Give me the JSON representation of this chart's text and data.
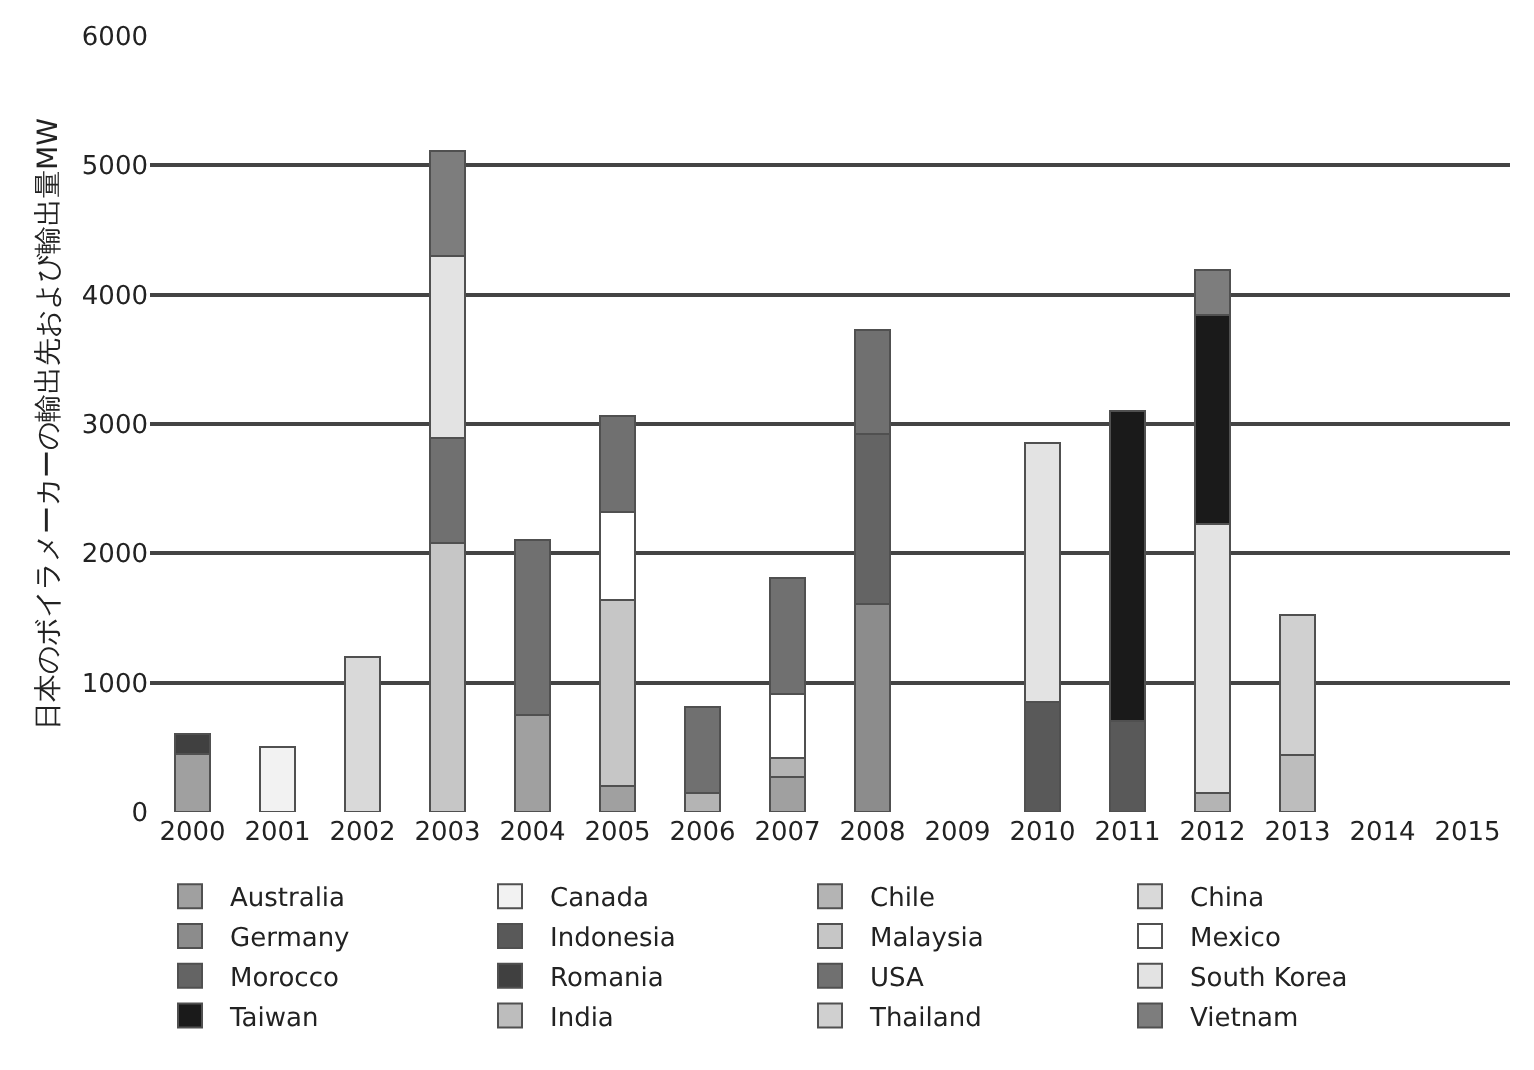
{
  "chart_data": {
    "type": "bar",
    "stacked": true,
    "ylabel": "日本のボイラメーカーの輸出先および輸出量MW",
    "categories": [
      "2000",
      "2001",
      "2002",
      "2003",
      "2004",
      "2005",
      "2006",
      "2007",
      "2008",
      "2009",
      "2010",
      "2011",
      "2012",
      "2013",
      "2014",
      "2015"
    ],
    "ylim": [
      0,
      6000
    ],
    "yticks": [
      0,
      1000,
      2000,
      3000,
      4000,
      5000,
      6000
    ],
    "grid": "y",
    "legend": "bottom",
    "series": [
      {
        "name": "Australia",
        "color": "#a0a0a0",
        "values": [
          450,
          null,
          null,
          null,
          750,
          200,
          null,
          270,
          null,
          null,
          null,
          null,
          null,
          null,
          null,
          null
        ]
      },
      {
        "name": "Canada",
        "color": "#f2f2f2",
        "values": [
          null,
          500,
          null,
          null,
          null,
          null,
          null,
          null,
          null,
          null,
          null,
          null,
          null,
          null,
          null,
          null
        ]
      },
      {
        "name": "Chile",
        "color": "#b4b4b4",
        "values": [
          null,
          null,
          null,
          null,
          null,
          null,
          150,
          150,
          null,
          null,
          null,
          null,
          150,
          null,
          null,
          null
        ]
      },
      {
        "name": "China",
        "color": "#d9d9d9",
        "values": [
          null,
          null,
          1200,
          null,
          null,
          null,
          null,
          null,
          null,
          null,
          null,
          null,
          null,
          null,
          null,
          null
        ]
      },
      {
        "name": "Germany",
        "color": "#8c8c8c",
        "values": [
          null,
          null,
          null,
          null,
          null,
          null,
          null,
          null,
          1610,
          null,
          null,
          null,
          null,
          null,
          null,
          null
        ]
      },
      {
        "name": "Indonesia",
        "color": "#595959",
        "values": [
          null,
          null,
          null,
          null,
          null,
          null,
          null,
          null,
          null,
          null,
          850,
          700,
          null,
          null,
          null,
          null
        ]
      },
      {
        "name": "Malaysia",
        "color": "#c6c6c6",
        "values": [
          null,
          null,
          null,
          2080,
          null,
          1440,
          null,
          null,
          null,
          null,
          null,
          null,
          null,
          null,
          null,
          null
        ]
      },
      {
        "name": "Mexico",
        "color": "#ffffff",
        "values": [
          null,
          null,
          null,
          null,
          null,
          680,
          null,
          490,
          null,
          null,
          null,
          null,
          null,
          null,
          null,
          null
        ]
      },
      {
        "name": "Morocco",
        "color": "#646464",
        "values": [
          null,
          null,
          null,
          null,
          null,
          null,
          null,
          null,
          1310,
          null,
          null,
          null,
          null,
          null,
          null,
          null
        ]
      },
      {
        "name": "Romania",
        "color": "#404040",
        "values": [
          150,
          null,
          null,
          null,
          null,
          null,
          null,
          null,
          null,
          null,
          null,
          null,
          null,
          null,
          null,
          null
        ]
      },
      {
        "name": "USA",
        "color": "#707070",
        "values": [
          null,
          null,
          null,
          810,
          1350,
          740,
          660,
          900,
          810,
          null,
          null,
          null,
          null,
          null,
          null,
          null
        ]
      },
      {
        "name": "South Korea",
        "color": "#e3e3e3",
        "values": [
          null,
          null,
          null,
          1410,
          null,
          null,
          null,
          null,
          null,
          null,
          2000,
          null,
          2080,
          null,
          null,
          null
        ]
      },
      {
        "name": "Taiwan",
        "color": "#1a1a1a",
        "values": [
          null,
          null,
          null,
          null,
          null,
          null,
          null,
          null,
          null,
          null,
          null,
          2400,
          1610,
          null,
          null,
          null
        ]
      },
      {
        "name": "India",
        "color": "#bdbdbd",
        "values": [
          null,
          null,
          null,
          null,
          null,
          null,
          null,
          null,
          null,
          null,
          null,
          null,
          null,
          440,
          null,
          null
        ]
      },
      {
        "name": "Thailand",
        "color": "#d0d0d0",
        "values": [
          null,
          null,
          null,
          null,
          null,
          null,
          null,
          null,
          null,
          null,
          null,
          null,
          null,
          1080,
          null,
          null
        ]
      },
      {
        "name": "Vietnam",
        "color": "#7d7d7d",
        "values": [
          null,
          null,
          null,
          810,
          null,
          null,
          null,
          null,
          null,
          null,
          null,
          null,
          350,
          null,
          null,
          null
        ]
      }
    ]
  }
}
